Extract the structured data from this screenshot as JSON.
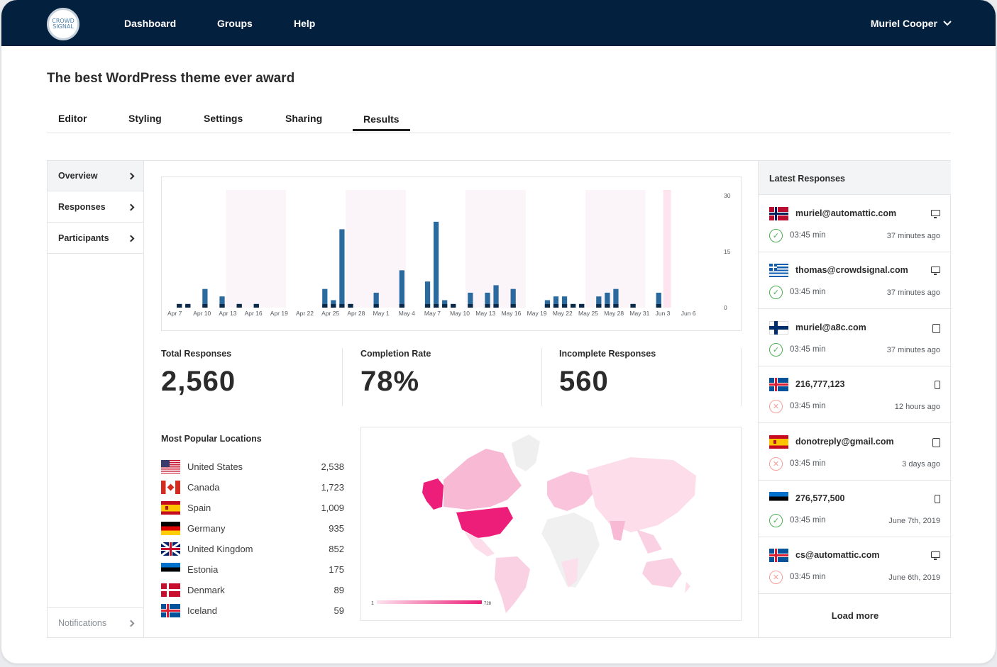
{
  "nav": {
    "logo_text": "CROWD SIGNAL",
    "items": [
      "Dashboard",
      "Groups",
      "Help"
    ],
    "user": "Muriel Cooper"
  },
  "page": {
    "title": "The best WordPress theme ever award"
  },
  "tabs": [
    "Editor",
    "Styling",
    "Settings",
    "Sharing",
    "Results"
  ],
  "active_tab": "Results",
  "sidebar": {
    "items": [
      "Overview",
      "Responses",
      "Participants"
    ],
    "notifications": "Notifications"
  },
  "chart_data": {
    "type": "bar",
    "x_tick_labels": [
      "Apr 7",
      "Apr 10",
      "Apr 13",
      "Apr 16",
      "Apr 19",
      "Apr 22",
      "Apr 25",
      "Apr 28",
      "May 1",
      "May 4",
      "May 7",
      "May 10",
      "May 13",
      "May 16",
      "May 19",
      "May 22",
      "May 25",
      "May 28",
      "May 31",
      "Jun 3",
      "Jun 6"
    ],
    "y_ticks": [
      0,
      15,
      30
    ],
    "ylim": [
      0,
      30
    ],
    "values": [
      0,
      1,
      1,
      0,
      5,
      0,
      3,
      0,
      1,
      0,
      1,
      0,
      0,
      0,
      0,
      0,
      0,
      0,
      5,
      2,
      21,
      1,
      0,
      0,
      4,
      0,
      0,
      10,
      0,
      0,
      7,
      23,
      2,
      1,
      0,
      4,
      0,
      4,
      6,
      0,
      5,
      0,
      0,
      0,
      2,
      3,
      3,
      1,
      1,
      0,
      3,
      4,
      5,
      0,
      1,
      0,
      0,
      4,
      0,
      0,
      0,
      0,
      0
    ]
  },
  "stats": [
    {
      "label": "Total Responses",
      "value": "2,560"
    },
    {
      "label": "Completion Rate",
      "value": "78%"
    },
    {
      "label": "Incomplete Responses",
      "value": "560"
    }
  ],
  "locations": {
    "title": "Most Popular Locations",
    "items": [
      {
        "country": "United States",
        "count": "2,538",
        "flag": "us"
      },
      {
        "country": "Canada",
        "count": "1,723",
        "flag": "ca"
      },
      {
        "country": "Spain",
        "count": "1,009",
        "flag": "es"
      },
      {
        "country": "Germany",
        "count": "935",
        "flag": "de"
      },
      {
        "country": "United Kingdom",
        "count": "852",
        "flag": "gb"
      },
      {
        "country": "Estonia",
        "count": "175",
        "flag": "ee"
      },
      {
        "country": "Denmark",
        "count": "89",
        "flag": "dk"
      },
      {
        "country": "Iceland",
        "count": "59",
        "flag": "is"
      }
    ]
  },
  "map": {
    "legend_min": "1",
    "legend_max": "728"
  },
  "latest": {
    "title": "Latest Responses",
    "items": [
      {
        "who": "muriel@automattic.com",
        "flag": "no",
        "device": "monitor",
        "status": "ok",
        "duration": "03:45 min",
        "when": "37 minutes ago"
      },
      {
        "who": "thomas@crowdsignal.com",
        "flag": "gr",
        "device": "monitor",
        "status": "ok",
        "duration": "03:45 min",
        "when": "37 minutes ago"
      },
      {
        "who": "muriel@a8c.com",
        "flag": "fi",
        "device": "tablet",
        "status": "ok",
        "duration": "03:45 min",
        "when": "37 minutes ago"
      },
      {
        "who": "216,777,123",
        "flag": "is",
        "device": "phone",
        "status": "bad",
        "duration": "03:45 min",
        "when": "12 hours ago"
      },
      {
        "who": "donotreply@gmail.com",
        "flag": "es",
        "device": "tablet",
        "status": "bad",
        "duration": "03:45 min",
        "when": "3 days ago"
      },
      {
        "who": "276,577,500",
        "flag": "ee",
        "device": "phone",
        "status": "ok",
        "duration": "03:45 min",
        "when": "June 7th, 2019"
      },
      {
        "who": "cs@automattic.com",
        "flag": "is",
        "device": "monitor",
        "status": "bad",
        "duration": "03:45 min",
        "when": "June 6th, 2019"
      }
    ],
    "load_more": "Load more"
  }
}
